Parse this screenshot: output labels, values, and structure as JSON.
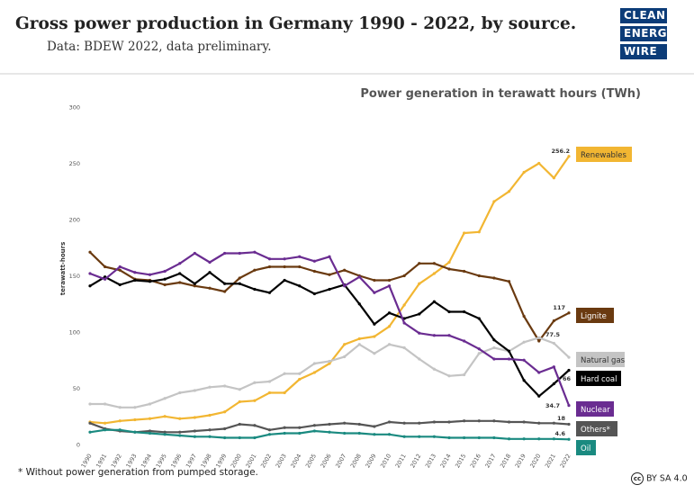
{
  "header": {
    "title": "Gross power production in Germany 1990 - 2022, by source.",
    "subtitle": "Data: BDEW 2022, data preliminary.",
    "logo_lines": [
      "CLEAN",
      "ENERGY",
      "WIRE"
    ]
  },
  "footnote": "* Without power generation from pumped storage.",
  "license": "BY SA 4.0",
  "license_icon": "cc-icon",
  "chart_data": {
    "type": "line",
    "unit_title": "Power generation in terawatt hours (TWh)",
    "ylabel": "terawatt-hours",
    "xlabel": "",
    "ylim": [
      0,
      300
    ],
    "yticks": [
      0,
      50,
      100,
      150,
      200,
      250,
      300
    ],
    "grid": false,
    "legend": "right, end of each line",
    "x": [
      1990,
      1991,
      1992,
      1993,
      1994,
      1995,
      1996,
      1997,
      1998,
      1999,
      2000,
      2001,
      2002,
      2003,
      2004,
      2005,
      2006,
      2007,
      2008,
      2009,
      2010,
      2011,
      2012,
      2013,
      2014,
      2015,
      2016,
      2017,
      2018,
      2019,
      2020,
      2021,
      2022
    ],
    "series": [
      {
        "name": "Renewables",
        "color": "#f2b632",
        "label_color": "#f2b632",
        "label_text_color": "#333333",
        "end_value": "256.2",
        "values": [
          20,
          19,
          21,
          22,
          23,
          25,
          23,
          24,
          26,
          29,
          38,
          39,
          46,
          46,
          58,
          64,
          72,
          89,
          94,
          96,
          105,
          124,
          143,
          152,
          162,
          188,
          189,
          216,
          225,
          242,
          250,
          237,
          256.2
        ]
      },
      {
        "name": "Lignite",
        "color": "#6a3a10",
        "label_color": "#6a3a10",
        "label_text_color": "#ffffff",
        "end_value": "117",
        "values": [
          171,
          158,
          155,
          147,
          146,
          142,
          144,
          141,
          139,
          136,
          148,
          155,
          158,
          158,
          158,
          154,
          151,
          155,
          150,
          146,
          146,
          150,
          161,
          161,
          156,
          154,
          150,
          148,
          145,
          114,
          92,
          110,
          117
        ]
      },
      {
        "name": "Natural gas",
        "color": "#c4c4c4",
        "label_color": "#c4c4c4",
        "label_text_color": "#333333",
        "end_value": "77.5",
        "values": [
          36,
          36,
          33,
          33,
          36,
          41,
          46,
          48,
          51,
          52,
          49,
          55,
          56,
          63,
          63,
          72,
          74,
          78,
          89,
          81,
          89,
          86,
          76,
          67,
          61,
          62,
          81,
          86,
          83,
          91,
          95,
          90,
          77.5
        ]
      },
      {
        "name": "Hard coal",
        "color": "#000000",
        "label_color": "#000000",
        "label_text_color": "#ffffff",
        "end_value": "66",
        "values": [
          141,
          149,
          142,
          146,
          145,
          147,
          152,
          143,
          153,
          143,
          143,
          138,
          135,
          146,
          141,
          134,
          138,
          142,
          125,
          107,
          117,
          112,
          116,
          127,
          118,
          118,
          112,
          93,
          83,
          57,
          43,
          54,
          66
        ]
      },
      {
        "name": "Nuclear",
        "color": "#6a2c91",
        "label_color": "#6a2c91",
        "label_text_color": "#ffffff",
        "end_value": "34.7",
        "values": [
          152,
          147,
          158,
          153,
          151,
          154,
          161,
          170,
          162,
          170,
          170,
          171,
          165,
          165,
          167,
          163,
          167,
          141,
          149,
          135,
          141,
          108,
          99,
          97,
          97,
          92,
          85,
          76,
          76,
          75,
          64,
          69,
          34.7
        ]
      },
      {
        "name": "Others*",
        "color": "#555555",
        "label_color": "#555555",
        "label_text_color": "#ffffff",
        "end_value": "18",
        "values": [
          19,
          14,
          12,
          11,
          12,
          11,
          11,
          12,
          13,
          14,
          18,
          17,
          13,
          15,
          15,
          17,
          18,
          19,
          18,
          16,
          20,
          19,
          19,
          20,
          20,
          21,
          21,
          21,
          20,
          20,
          19,
          19,
          18
        ]
      },
      {
        "name": "Oil",
        "color": "#1a8a80",
        "label_color": "#1a8a80",
        "label_text_color": "#ffffff",
        "end_value": "4.6",
        "values": [
          11,
          13,
          13,
          11,
          10,
          9,
          8,
          7,
          7,
          6,
          6,
          6,
          9,
          10,
          10,
          12,
          11,
          10,
          10,
          9,
          9,
          7,
          7,
          7,
          6,
          6,
          6,
          6,
          5,
          5,
          5,
          5,
          4.6
        ]
      }
    ]
  }
}
